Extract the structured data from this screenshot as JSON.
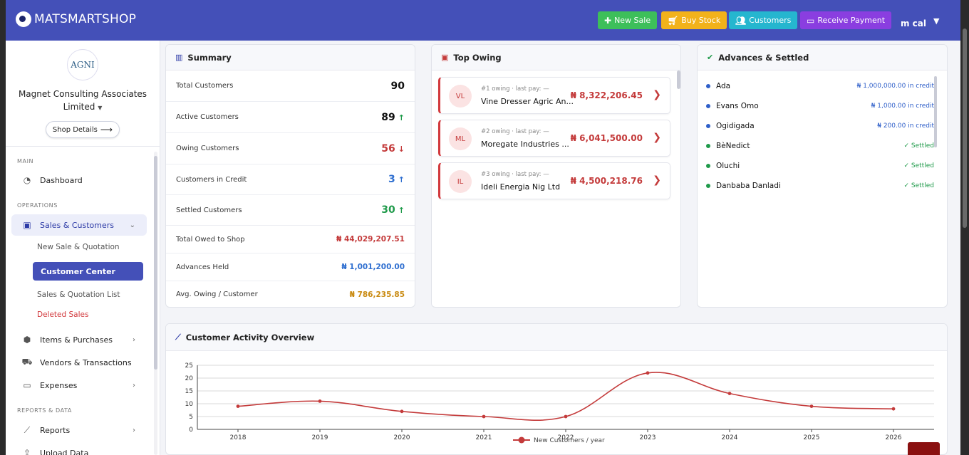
{
  "header": {
    "brand": "MATSMARTSHOP",
    "buttons": [
      {
        "label": "New Sale",
        "icon": "plus-icon",
        "color": "#3dbf5a"
      },
      {
        "label": "Buy Stock",
        "icon": "cart-icon",
        "color": "#f2b21b"
      },
      {
        "label": "Customers",
        "icon": "users-icon",
        "color": "#25b6cf"
      },
      {
        "label": "Receive Payment",
        "icon": "card-icon",
        "color": "#8a3ee0"
      }
    ],
    "user": "m cal"
  },
  "sidebar": {
    "shop_logo_text": "AGNI",
    "shop_name": "Magnet Consulting Associates Limited",
    "shop_details_label": "Shop Details",
    "sections": {
      "main": "MAIN",
      "operations": "OPERATIONS",
      "reports": "REPORTS & DATA"
    },
    "items": {
      "dashboard": "Dashboard",
      "sales_customers": "Sales & Customers",
      "new_sale_quotation": "New Sale & Quotation",
      "customer_center": "Customer Center",
      "sales_quotation_list": "Sales & Quotation List",
      "deleted_sales": "Deleted Sales",
      "items_purchases": "Items & Purchases",
      "vendors_transactions": "Vendors & Transactions",
      "expenses": "Expenses",
      "reports": "Reports",
      "upload_data": "Upload Data"
    }
  },
  "summary": {
    "title": "Summary",
    "rows": [
      {
        "label": "Total Customers",
        "value": "90",
        "arrow": "",
        "color": "#111111"
      },
      {
        "label": "Active Customers",
        "value": "89",
        "arrow": "↑",
        "color": "#111111",
        "arrow_color": "#1f9a4a"
      },
      {
        "label": "Owing Customers",
        "value": "56",
        "arrow": "↓",
        "color": "#c43b3b",
        "arrow_color": "#c43b3b"
      },
      {
        "label": "Customers in Credit",
        "value": "3",
        "arrow": "↑",
        "color": "#2f6fd0",
        "arrow_color": "#2f6fd0"
      },
      {
        "label": "Settled Customers",
        "value": "30",
        "arrow": "↑",
        "color": "#1f9a4a",
        "arrow_color": "#1f9a4a"
      },
      {
        "label": "Total Owed to Shop",
        "value": "₦ 44,029,207.51",
        "arrow": "",
        "color": "#c43b3b"
      },
      {
        "label": "Advances Held",
        "value": "₦ 1,001,200.00",
        "arrow": "",
        "color": "#2f6fd0"
      },
      {
        "label": "Avg. Owing / Customer",
        "value": "₦ 786,235.85",
        "arrow": "",
        "color": "#c98a10"
      }
    ]
  },
  "top_owing": {
    "title": "Top Owing",
    "items": [
      {
        "initials": "VL",
        "meta": "#1 owing · last pay: —",
        "name": "Vine Dresser Agric An...",
        "amount": "₦ 8,322,206.45"
      },
      {
        "initials": "ML",
        "meta": "#2 owing · last pay: —",
        "name": "Moregate Industries ...",
        "amount": "₦ 6,041,500.00"
      },
      {
        "initials": "IL",
        "meta": "#3 owing · last pay: —",
        "name": "Ideli Energia Nig Ltd",
        "amount": "₦ 4,500,218.76"
      }
    ]
  },
  "advances": {
    "title": "Advances & Settled",
    "items": [
      {
        "name": "Ada",
        "value": "₦ 1,000,000.00 in credit",
        "color": "#2f5fc9"
      },
      {
        "name": "Evans Omo",
        "value": "₦ 1,000.00 in credit",
        "color": "#2f5fc9"
      },
      {
        "name": "Ogidigada",
        "value": "₦ 200.00 in credit",
        "color": "#2f5fc9"
      },
      {
        "name": "BèNedict",
        "value": "✓ Settled",
        "color": "#1f9a4a"
      },
      {
        "name": "Oluchi",
        "value": "✓ Settled",
        "color": "#1f9a4a"
      },
      {
        "name": "Danbaba Danladi",
        "value": "✓ Settled",
        "color": "#1f9a4a"
      }
    ]
  },
  "chart_data": {
    "type": "line",
    "title": "Customer Activity Overview",
    "x": [
      "2018",
      "2019",
      "2020",
      "2021",
      "2022",
      "2023",
      "2024",
      "2025",
      "2026"
    ],
    "series": [
      {
        "name": "New Customers / year",
        "values": [
          9,
          11,
          7,
          5,
          5,
          22,
          14,
          9,
          8
        ],
        "color": "#c43b3b"
      }
    ],
    "ylim": [
      0,
      25
    ],
    "yticks": [
      0,
      5,
      10,
      15,
      20,
      25
    ],
    "grid": true,
    "legend": "bottom"
  }
}
